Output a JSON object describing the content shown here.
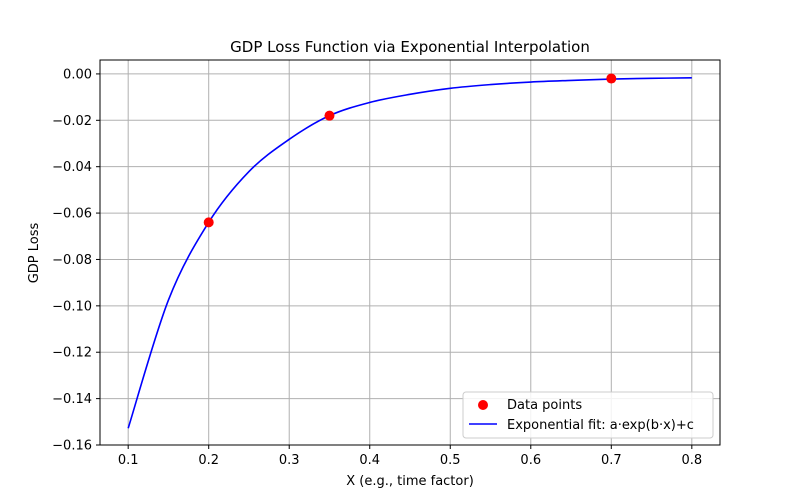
{
  "chart_data": {
    "type": "scatter",
    "title": "GDP Loss Function via Exponential Interpolation",
    "xlabel": "X (e.g., time factor)",
    "ylabel": "GDP Loss",
    "xlim": [
      0.065,
      0.835
    ],
    "ylim": [
      -0.16,
      0.006
    ],
    "xticks": [
      0.1,
      0.2,
      0.3,
      0.4,
      0.5,
      0.6,
      0.7,
      0.8
    ],
    "xtick_labels": [
      "0.1",
      "0.2",
      "0.3",
      "0.4",
      "0.5",
      "0.6",
      "0.7",
      "0.8"
    ],
    "yticks": [
      0.0,
      -0.02,
      -0.04,
      -0.06,
      -0.08,
      -0.1,
      -0.12,
      -0.14,
      -0.16
    ],
    "ytick_labels": [
      "0.00",
      "−0.02",
      "−0.04",
      "−0.06",
      "−0.08",
      "−0.10",
      "−0.12",
      "−0.14",
      "−0.16"
    ],
    "grid": true,
    "legend_position": "bottom-right",
    "series": [
      {
        "name": "Data points",
        "kind": "scatter",
        "color": "#ff0000",
        "points": [
          {
            "x": 0.2,
            "y": -0.064
          },
          {
            "x": 0.35,
            "y": -0.018
          },
          {
            "x": 0.7,
            "y": -0.002
          }
        ]
      },
      {
        "name": "Exponential fit: a·exp(b·x)+c",
        "kind": "line",
        "color": "#0000ff",
        "x": [
          0.1,
          0.15,
          0.2,
          0.25,
          0.3,
          0.35,
          0.4,
          0.45,
          0.5,
          0.55,
          0.6,
          0.65,
          0.7,
          0.75,
          0.8
        ],
        "y": [
          -0.1528,
          -0.0975,
          -0.064,
          -0.0421,
          -0.0282,
          -0.018,
          -0.0123,
          -0.0088,
          -0.0062,
          -0.0046,
          -0.0035,
          -0.0028,
          -0.0022,
          -0.0019,
          -0.0017
        ]
      }
    ]
  }
}
